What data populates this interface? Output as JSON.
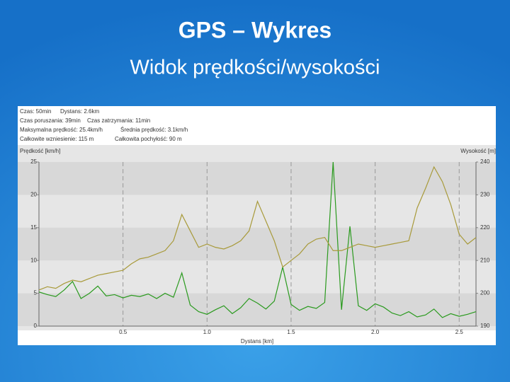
{
  "slide": {
    "title": "GPS – Wykres",
    "subtitle": "Widok prędkości/wysokości"
  },
  "chart_data": {
    "type": "line",
    "annotations": [
      "Czas: 50min",
      "Dystans: 2.6km",
      "Czas poruszania: 39min",
      "Czas zatrzymania: 11min",
      "Maksymalna prędkość: 25.4km/h",
      "Średnia prędkość: 3.1km/h",
      "Całkowite wzniesienie: 115 m",
      "Całkowita pochyłość: 90 m"
    ],
    "xlabel": "Dystans [km]",
    "x": [
      0,
      0.05,
      0.1,
      0.15,
      0.2,
      0.25,
      0.3,
      0.35,
      0.4,
      0.45,
      0.5,
      0.55,
      0.6,
      0.65,
      0.7,
      0.75,
      0.8,
      0.85,
      0.9,
      0.95,
      1.0,
      1.05,
      1.1,
      1.15,
      1.2,
      1.25,
      1.3,
      1.35,
      1.4,
      1.45,
      1.5,
      1.55,
      1.6,
      1.65,
      1.7,
      1.75,
      1.8,
      1.85,
      1.9,
      1.95,
      2.0,
      2.05,
      2.1,
      2.15,
      2.2,
      2.25,
      2.3,
      2.35,
      2.4,
      2.45,
      2.5,
      2.55,
      2.6
    ],
    "series": [
      {
        "name": "Prędkość [km/h]",
        "color": "#2a9a1e",
        "values": [
          5.2,
          4.8,
          4.5,
          5.5,
          6.8,
          4.2,
          5.0,
          6.1,
          4.6,
          4.8,
          4.3,
          4.7,
          4.5,
          4.9,
          4.2,
          5.0,
          4.4,
          8.1,
          3.2,
          2.2,
          1.8,
          2.5,
          3.1,
          1.9,
          2.8,
          4.2,
          3.5,
          2.6,
          3.8,
          9.0,
          3.3,
          2.4,
          3.0,
          2.7,
          3.6,
          25.0,
          2.5,
          15.2,
          3.1,
          2.4,
          3.4,
          2.9,
          2.0,
          1.6,
          2.2,
          1.4,
          1.7,
          2.6,
          1.3,
          1.9,
          1.5,
          1.8,
          2.2
        ]
      },
      {
        "name": "Wysokość [m]",
        "color": "#a89a3a",
        "axis": "y2",
        "values": [
          201,
          202,
          201.5,
          203,
          204,
          203.5,
          204.5,
          205.5,
          206,
          206.5,
          207,
          209,
          210.5,
          211,
          212,
          213,
          216,
          224,
          219,
          214,
          215,
          214,
          213.5,
          214.5,
          216,
          219,
          228,
          222,
          216,
          208,
          210,
          212,
          215,
          216.5,
          217,
          213,
          213,
          214,
          215,
          214.5,
          214,
          214.5,
          215,
          215.5,
          216,
          226,
          232,
          238.5,
          234,
          227,
          218,
          215,
          217
        ]
      }
    ],
    "xlim": [
      0,
      2.6
    ],
    "xticks": [
      0.5,
      {
        "value": 1,
        "label": "1.0"
      },
      1.5,
      {
        "value": 2,
        "label": "2.0"
      },
      2.5
    ],
    "ylim": [
      0,
      25
    ],
    "yticks": [
      0,
      5,
      10,
      15,
      20,
      25
    ],
    "y2lim": [
      190,
      240
    ],
    "y2ticks": [
      190,
      200,
      210,
      220,
      230,
      240
    ],
    "grid": true
  }
}
